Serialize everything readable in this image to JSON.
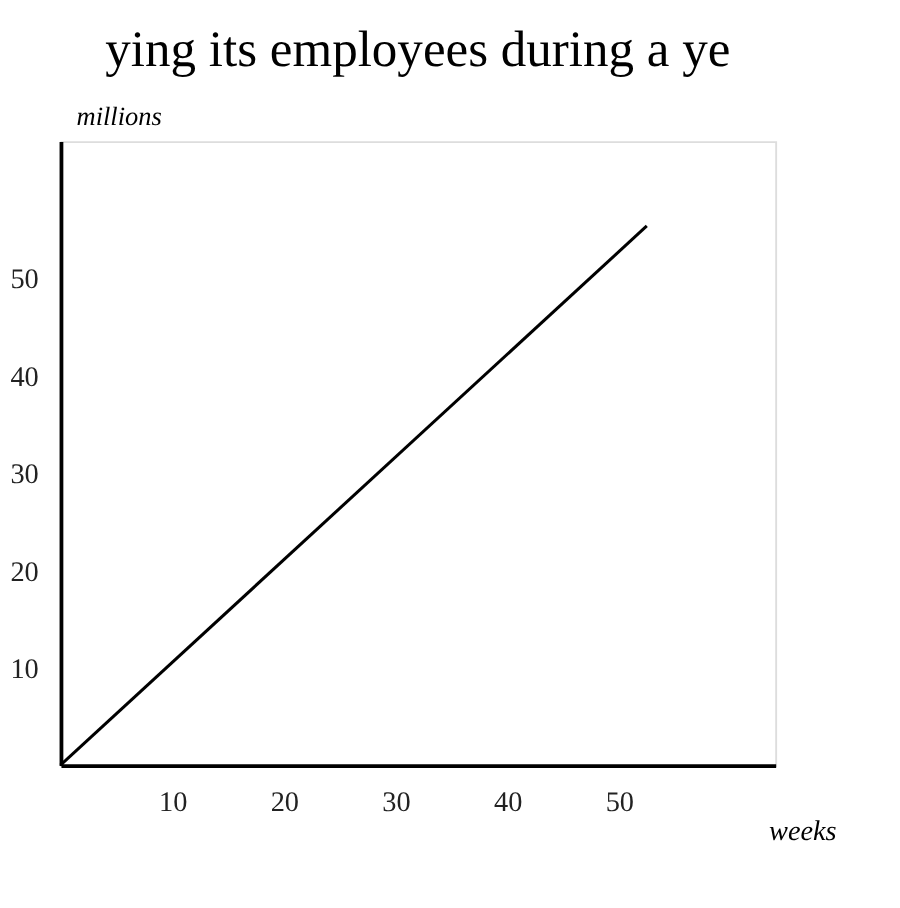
{
  "chart_data": {
    "type": "line",
    "title": "ying its employees during a ye",
    "xlabel": "weeks",
    "ylabel": "millions",
    "x": [
      0,
      52.5
    ],
    "series": [
      {
        "color": "#000000",
        "values": [
          0,
          55.3
        ]
      }
    ],
    "xlim": [
      0,
      64
    ],
    "ylim": [
      0,
      64
    ],
    "xticks": [
      10,
      20,
      30,
      40,
      50
    ],
    "yticks": [
      10,
      20,
      30,
      40,
      50
    ],
    "grid": false,
    "legend": false,
    "marker": "none",
    "line_style": "solid"
  }
}
